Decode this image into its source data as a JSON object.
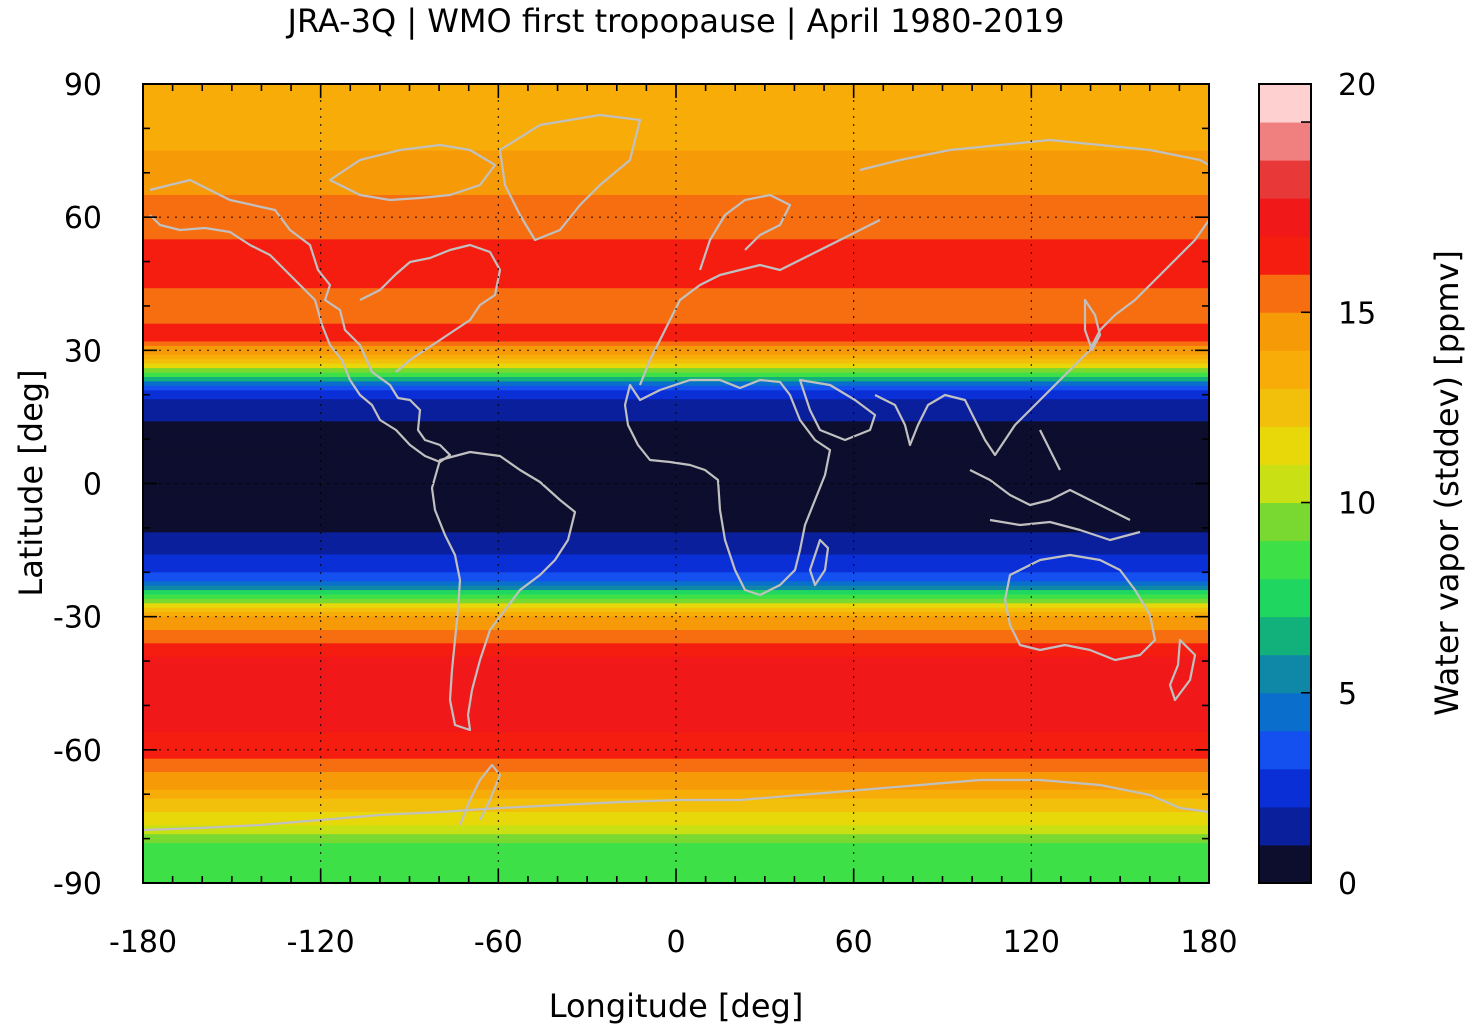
{
  "chart_data": {
    "type": "heatmap",
    "title": "JRA-3Q | WMO first tropopause | April 1980-2019",
    "xlabel": "Longitude [deg]",
    "ylabel": "Latitude [deg]",
    "xlim": [
      -180,
      180
    ],
    "ylim": [
      -90,
      90
    ],
    "xticks": [
      "-180",
      "-120",
      "-60",
      "0",
      "60",
      "120",
      "180"
    ],
    "yticks": [
      "90",
      "60",
      "30",
      "0",
      "-30",
      "-60",
      "-90"
    ],
    "grid": true,
    "colorbar": {
      "label": "Water vapor (stddev) [ppmv]",
      "range": [
        0,
        20
      ],
      "ticks": [
        "0",
        "5",
        "10",
        "15",
        "20"
      ],
      "levels": [
        {
          "from": 0,
          "to": 1,
          "color": "#0d0d2e"
        },
        {
          "from": 1,
          "to": 2,
          "color": "#0a1f9c"
        },
        {
          "from": 2,
          "to": 3,
          "color": "#0a2fd6"
        },
        {
          "from": 3,
          "to": 4,
          "color": "#1450f0"
        },
        {
          "from": 4,
          "to": 5,
          "color": "#0a6fcc"
        },
        {
          "from": 5,
          "to": 6,
          "color": "#0f87a6"
        },
        {
          "from": 6,
          "to": 7,
          "color": "#12b07a"
        },
        {
          "from": 7,
          "to": 8,
          "color": "#1ed660"
        },
        {
          "from": 8,
          "to": 9,
          "color": "#3ee048"
        },
        {
          "from": 9,
          "to": 10,
          "color": "#7ad930"
        },
        {
          "from": 10,
          "to": 11,
          "color": "#c8e014"
        },
        {
          "from": 11,
          "to": 12,
          "color": "#e8d80a"
        },
        {
          "from": 12,
          "to": 13,
          "color": "#f2c00a"
        },
        {
          "from": 13,
          "to": 14,
          "color": "#f7ac08"
        },
        {
          "from": 14,
          "to": 15,
          "color": "#f79a08"
        },
        {
          "from": 15,
          "to": 16,
          "color": "#f76e10"
        },
        {
          "from": 16,
          "to": 17,
          "color": "#f51c10"
        },
        {
          "from": 17,
          "to": 18,
          "color": "#f01818"
        },
        {
          "from": 18,
          "to": 19,
          "color": "#e83838"
        },
        {
          "from": 19,
          "to": 20,
          "color": "#f08080"
        },
        {
          "from": 20,
          "to": 21,
          "color": "#ffd0d0"
        }
      ]
    },
    "zonal_profile": [
      {
        "lat": 90,
        "value": 13.0
      },
      {
        "lat": 80,
        "value": 13.5
      },
      {
        "lat": 70,
        "value": 14.5
      },
      {
        "lat": 60,
        "value": 15.5
      },
      {
        "lat": 50,
        "value": 16.5
      },
      {
        "lat": 40,
        "value": 15.5
      },
      {
        "lat": 33,
        "value": 16.5
      },
      {
        "lat": 28,
        "value": 12.5
      },
      {
        "lat": 25,
        "value": 8.0
      },
      {
        "lat": 22,
        "value": 3.0
      },
      {
        "lat": 18,
        "value": 1.5
      },
      {
        "lat": 12,
        "value": 0.5
      },
      {
        "lat": 0,
        "value": 0.5
      },
      {
        "lat": -8,
        "value": 0.5
      },
      {
        "lat": -13,
        "value": 1.5
      },
      {
        "lat": -19,
        "value": 2.5
      },
      {
        "lat": -22,
        "value": 4.0
      },
      {
        "lat": -24,
        "value": 7.0
      },
      {
        "lat": -27,
        "value": 11.0
      },
      {
        "lat": -30,
        "value": 14.0
      },
      {
        "lat": -40,
        "value": 17.5
      },
      {
        "lat": -50,
        "value": 17.5
      },
      {
        "lat": -60,
        "value": 16.5
      },
      {
        "lat": -68,
        "value": 14.0
      },
      {
        "lat": -75,
        "value": 11.5
      },
      {
        "lat": -82,
        "value": 8.0
      },
      {
        "lat": -90,
        "value": 8.5
      }
    ]
  }
}
